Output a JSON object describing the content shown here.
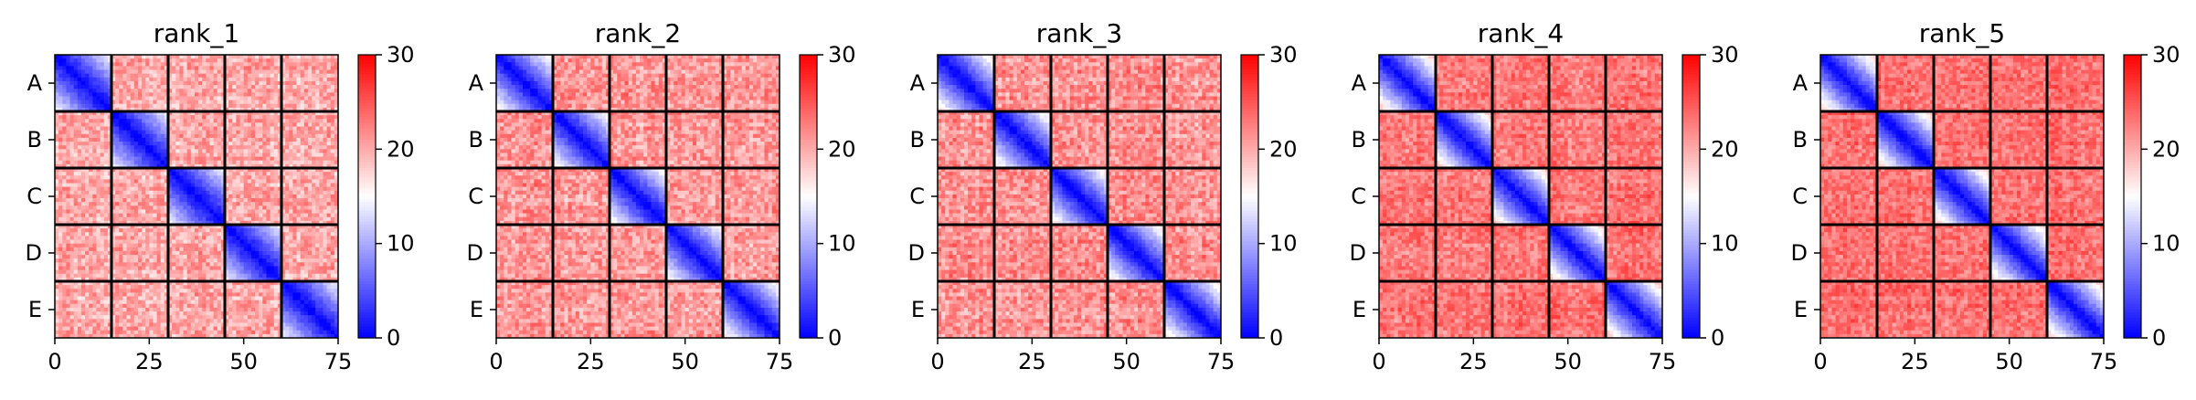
{
  "chart_data": [
    {
      "type": "heatmap",
      "title": "rank_1",
      "group_labels": [
        "A",
        "B",
        "C",
        "D",
        "E"
      ],
      "n_per_group": 15,
      "n": 75,
      "x_ticks": [
        "0",
        "25",
        "50",
        "75"
      ],
      "x_tick_values": [
        0,
        25,
        50,
        75
      ],
      "colorbar": {
        "min": 0,
        "max": 30,
        "ticks": [
          "0",
          "10",
          "20",
          "30"
        ],
        "tick_values": [
          0,
          10,
          20,
          30
        ],
        "colormap": "bwr"
      },
      "within_group": {
        "diag": 0,
        "slope": 1.0,
        "far": 17
      },
      "between_group": {
        "base": 20,
        "var": 3
      },
      "seed": 11
    },
    {
      "type": "heatmap",
      "title": "rank_2",
      "group_labels": [
        "A",
        "B",
        "C",
        "D",
        "E"
      ],
      "n_per_group": 15,
      "n": 75,
      "x_ticks": [
        "0",
        "25",
        "50",
        "75"
      ],
      "x_tick_values": [
        0,
        25,
        50,
        75
      ],
      "colorbar": {
        "min": 0,
        "max": 30,
        "ticks": [
          "0",
          "10",
          "20",
          "30"
        ],
        "tick_values": [
          0,
          10,
          20,
          30
        ],
        "colormap": "bwr"
      },
      "within_group": {
        "diag": 0,
        "slope": 1.15,
        "far": 18
      },
      "between_group": {
        "base": 21,
        "var": 3
      },
      "seed": 23
    },
    {
      "type": "heatmap",
      "title": "rank_3",
      "group_labels": [
        "A",
        "B",
        "C",
        "D",
        "E"
      ],
      "n_per_group": 15,
      "n": 75,
      "x_ticks": [
        "0",
        "25",
        "50",
        "75"
      ],
      "x_tick_values": [
        0,
        25,
        50,
        75
      ],
      "colorbar": {
        "min": 0,
        "max": 30,
        "ticks": [
          "0",
          "10",
          "20",
          "30"
        ],
        "tick_values": [
          0,
          10,
          20,
          30
        ],
        "colormap": "bwr"
      },
      "within_group": {
        "diag": 0,
        "slope": 1.2,
        "far": 19
      },
      "between_group": {
        "base": 21.5,
        "var": 3
      },
      "seed": 37
    },
    {
      "type": "heatmap",
      "title": "rank_4",
      "group_labels": [
        "A",
        "B",
        "C",
        "D",
        "E"
      ],
      "n_per_group": 15,
      "n": 75,
      "x_ticks": [
        "0",
        "25",
        "50",
        "75"
      ],
      "x_tick_values": [
        0,
        25,
        50,
        75
      ],
      "colorbar": {
        "min": 0,
        "max": 30,
        "ticks": [
          "0",
          "10",
          "20",
          "30"
        ],
        "tick_values": [
          0,
          10,
          20,
          30
        ],
        "colormap": "bwr"
      },
      "within_group": {
        "diag": 0,
        "slope": 1.3,
        "far": 21
      },
      "between_group": {
        "base": 23,
        "var": 2.5
      },
      "seed": 41
    },
    {
      "type": "heatmap",
      "title": "rank_5",
      "group_labels": [
        "A",
        "B",
        "C",
        "D",
        "E"
      ],
      "n_per_group": 15,
      "n": 75,
      "x_ticks": [
        "0",
        "25",
        "50",
        "75"
      ],
      "x_tick_values": [
        0,
        25,
        50,
        75
      ],
      "colorbar": {
        "min": 0,
        "max": 30,
        "ticks": [
          "0",
          "10",
          "20",
          "30"
        ],
        "tick_values": [
          0,
          10,
          20,
          30
        ],
        "colormap": "bwr"
      },
      "within_group": {
        "diag": 0,
        "slope": 1.3,
        "far": 21
      },
      "between_group": {
        "base": 23.5,
        "var": 2.5
      },
      "seed": 53
    }
  ]
}
